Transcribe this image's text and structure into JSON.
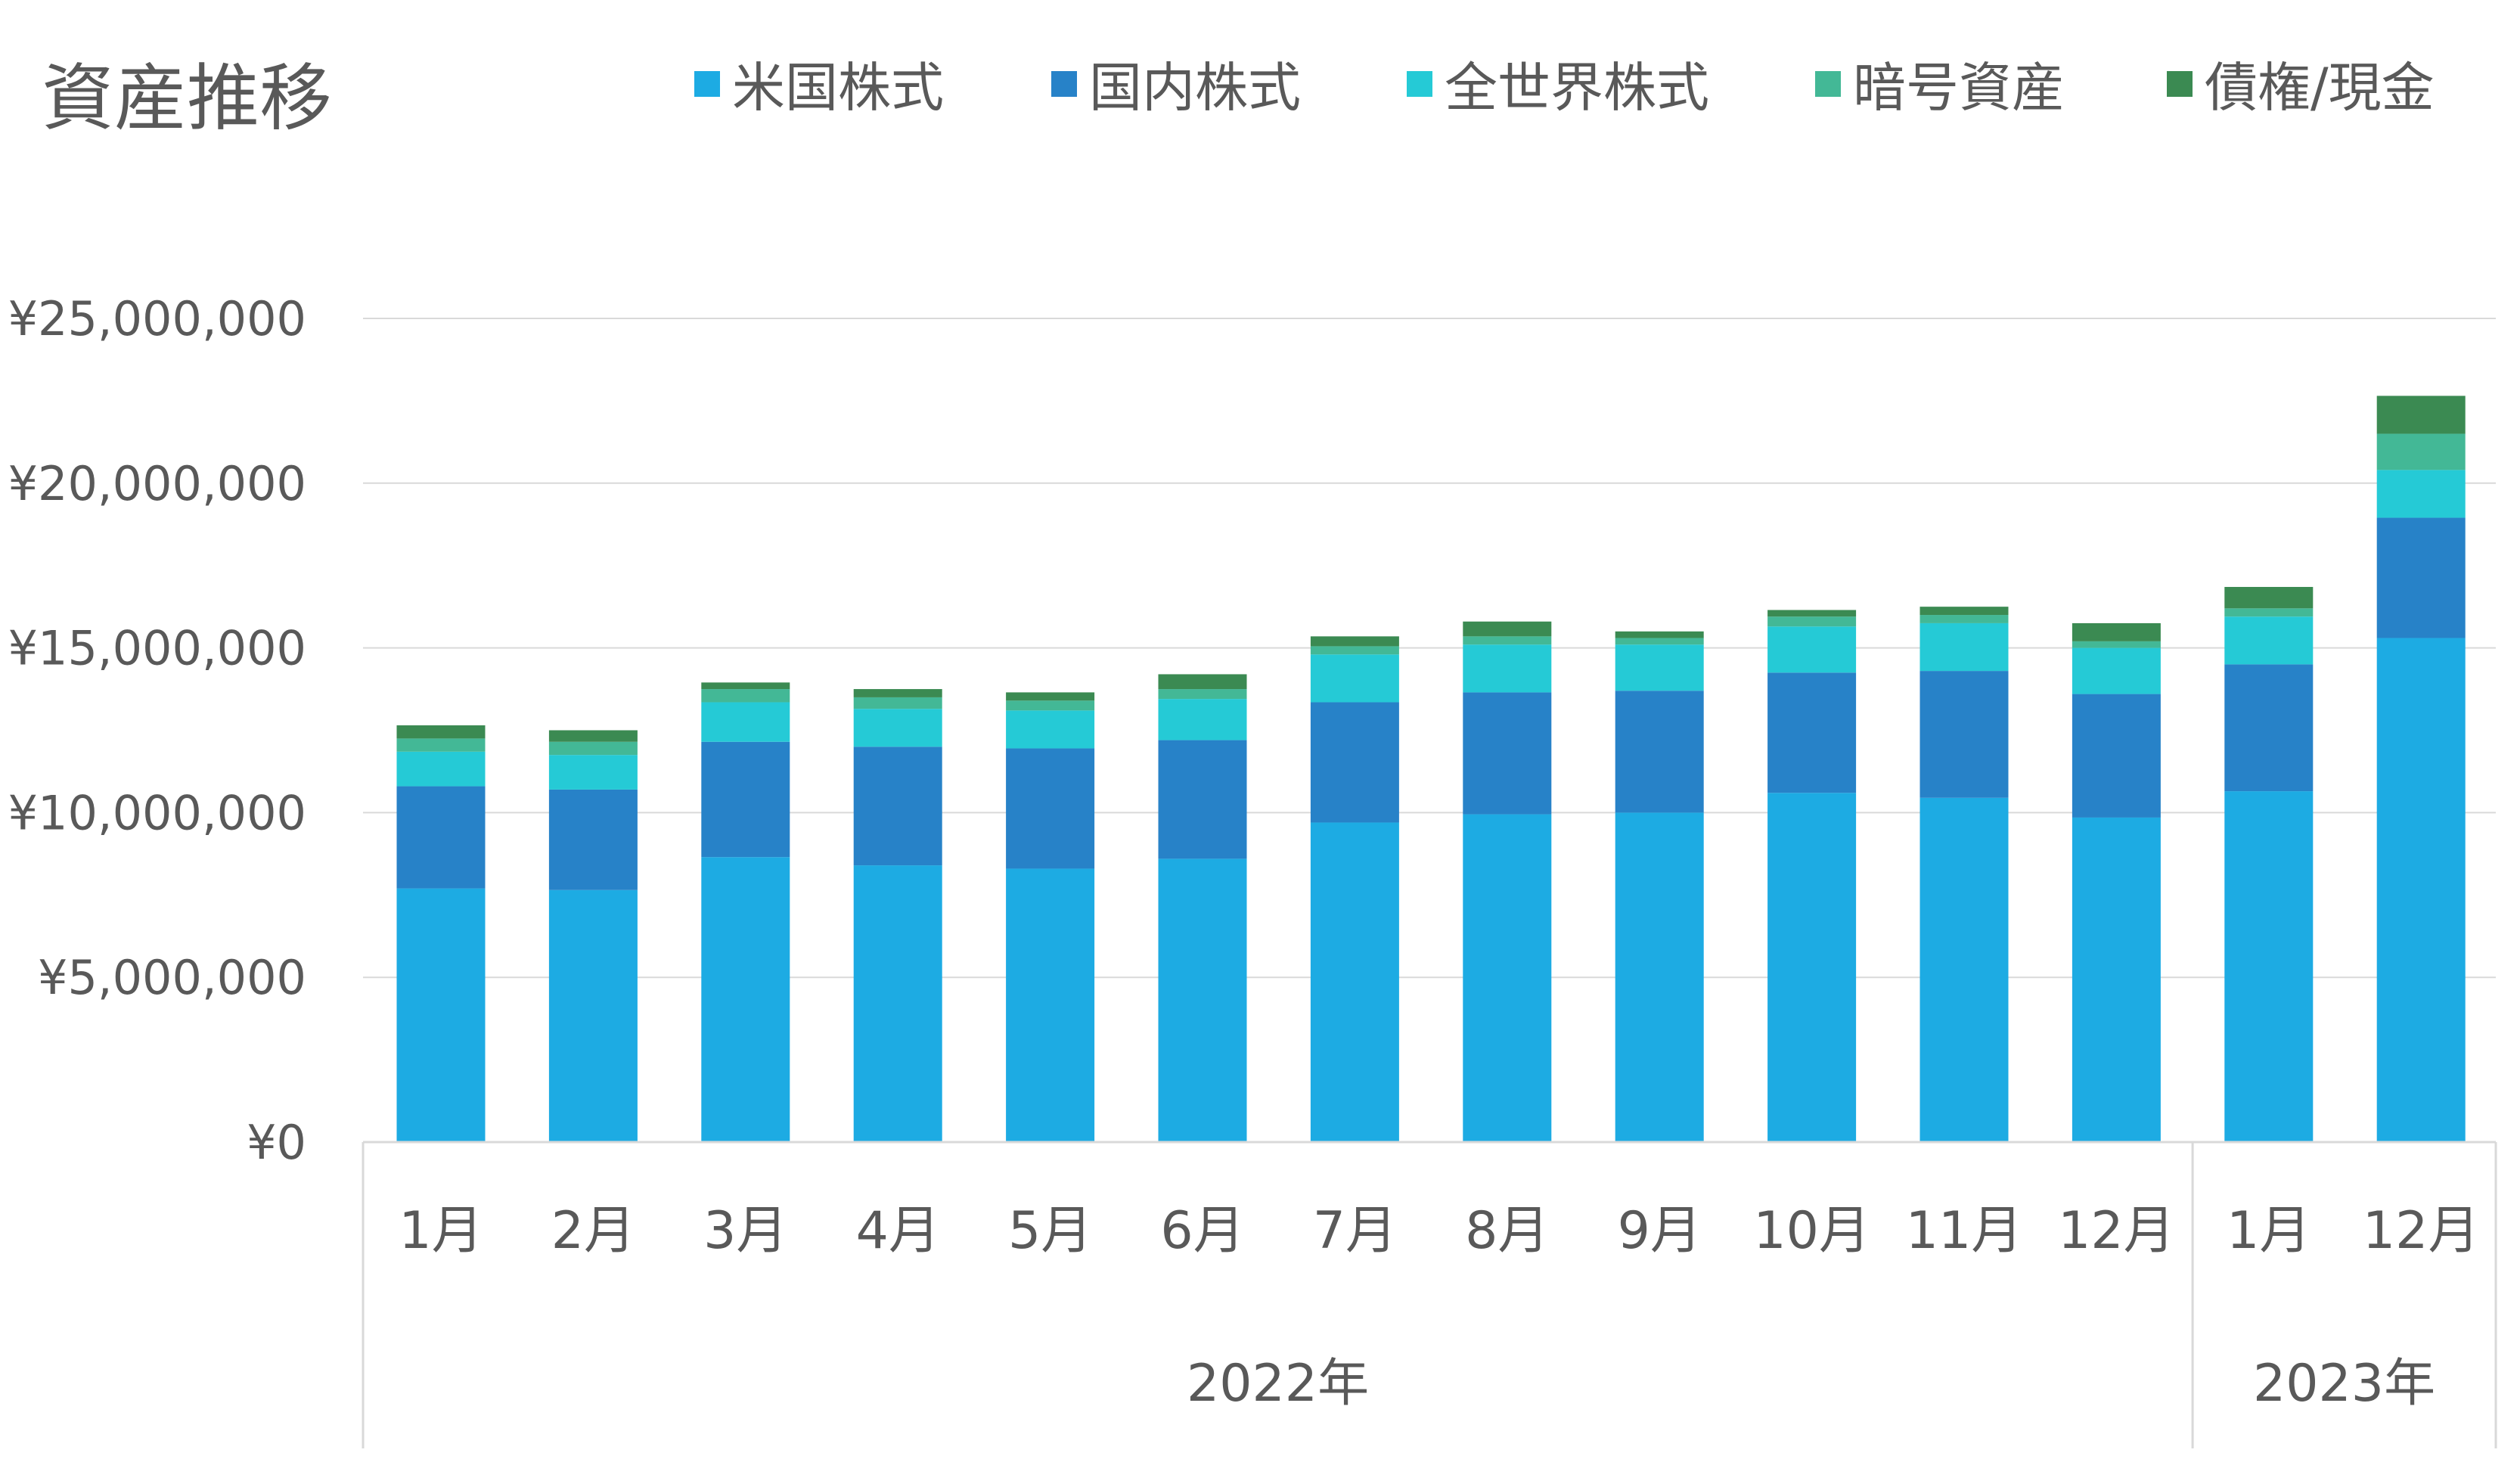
{
  "chart_data": {
    "type": "bar",
    "stacked": true,
    "title": "資産推移",
    "categories": [
      "1月",
      "2月",
      "3月",
      "4月",
      "5月",
      "6月",
      "7月",
      "8月",
      "9月",
      "10月",
      "11月",
      "12月",
      "1月",
      "12月"
    ],
    "groups": [
      {
        "label": "2022年",
        "start": 0,
        "end": 11
      },
      {
        "label": "2023年",
        "start": 12,
        "end": 13
      }
    ],
    "series": [
      {
        "name": "米国株式",
        "color": "#1DABE3",
        "values": [
          7700000,
          7650000,
          8650000,
          8400000,
          8300000,
          8600000,
          9700000,
          9950000,
          10000000,
          10600000,
          10450000,
          9850000,
          10650000,
          15300000
        ]
      },
      {
        "name": "国内株式",
        "color": "#2782C8",
        "values": [
          3100000,
          3050000,
          3500000,
          3600000,
          3650000,
          3600000,
          3650000,
          3700000,
          3700000,
          3650000,
          3850000,
          3750000,
          3850000,
          3650000
        ]
      },
      {
        "name": "全世界株式",
        "color": "#25CAD6",
        "values": [
          1050000,
          1050000,
          1200000,
          1150000,
          1150000,
          1250000,
          1450000,
          1450000,
          1400000,
          1400000,
          1450000,
          1400000,
          1450000,
          1450000
        ]
      },
      {
        "name": "暗号資産",
        "color": "#43B896",
        "values": [
          400000,
          400000,
          400000,
          350000,
          300000,
          300000,
          250000,
          250000,
          200000,
          300000,
          250000,
          200000,
          250000,
          1100000
        ]
      },
      {
        "name": "債権/現金",
        "color": "#3B8A52",
        "values": [
          400000,
          350000,
          200000,
          250000,
          250000,
          450000,
          300000,
          450000,
          200000,
          200000,
          250000,
          550000,
          650000,
          1150000
        ]
      }
    ],
    "ylim": [
      0,
      25000000
    ],
    "yticks": [
      0,
      5000000,
      10000000,
      15000000,
      20000000,
      25000000
    ],
    "ytick_labels": [
      "¥0",
      "¥5,000,000",
      "¥10,000,000",
      "¥15,000,000",
      "¥20,000,000",
      "¥25,000,000"
    ],
    "grid": true,
    "legend_position": "top-right",
    "colors": {
      "grid": "#D9D9D9",
      "text": "#595959"
    }
  }
}
